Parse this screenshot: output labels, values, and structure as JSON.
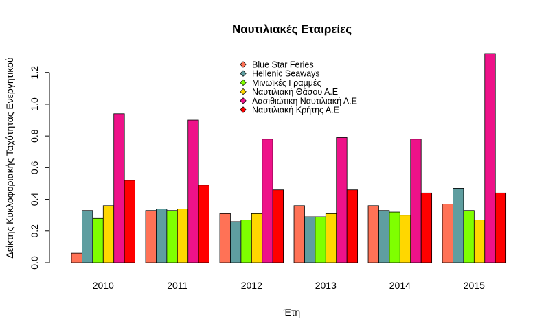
{
  "chart_data": {
    "type": "bar",
    "title": "Ναυτιλιακές Εταιρείες",
    "xlabel": "Έτη",
    "ylabel": "Δείκτης Κυκλοφοριακής Ταχύτητας Ενεργητικού",
    "categories": [
      "2010",
      "2011",
      "2012",
      "2013",
      "2014",
      "2015"
    ],
    "yticks": [
      "0.0",
      "0.2",
      "0.4",
      "0.6",
      "0.8",
      "1.0",
      "1.2"
    ],
    "ylim": [
      0,
      1.32
    ],
    "grid": false,
    "legend_position": "top-center",
    "series": [
      {
        "name": "Blue Star Feries",
        "color": "#FF7256",
        "values": [
          0.06,
          0.33,
          0.31,
          0.36,
          0.36,
          0.37
        ]
      },
      {
        "name": "Hellenic Seaways",
        "color": "#5F9EA0",
        "values": [
          0.33,
          0.34,
          0.26,
          0.29,
          0.33,
          0.47
        ]
      },
      {
        "name": "Μινωϊκές Γραμμές",
        "color": "#7FFF00",
        "values": [
          0.28,
          0.33,
          0.27,
          0.29,
          0.32,
          0.33
        ]
      },
      {
        "name": "Ναυτιλιακή Θάσου Α.Ε",
        "color": "#FFD700",
        "values": [
          0.36,
          0.34,
          0.31,
          0.31,
          0.3,
          0.27
        ]
      },
      {
        "name": "Λασιθιώτικη Ναυτιλιακή Α.Ε",
        "color": "#EE1289",
        "values": [
          0.94,
          0.9,
          0.78,
          0.79,
          0.78,
          1.32
        ]
      },
      {
        "name": "Ναυτιλιακή Κρήτης Α.Ε",
        "color": "#FF0000",
        "values": [
          0.52,
          0.49,
          0.46,
          0.46,
          0.44,
          0.44
        ]
      }
    ]
  }
}
